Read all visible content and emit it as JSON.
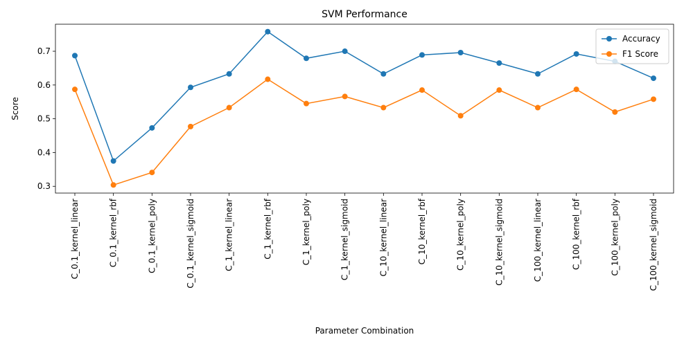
{
  "chart_data": {
    "type": "line",
    "title": "SVM Performance",
    "xlabel": "Parameter Combination",
    "ylabel": "Score",
    "categories": [
      "C_0.1_kernel_linear",
      "C_0.1_kernel_rbf",
      "C_0.1_kernel_poly",
      "C_0.1_kernel_sigmoid",
      "C_1_kernel_linear",
      "C_1_kernel_rbf",
      "C_1_kernel_poly",
      "C_1_kernel_sigmoid",
      "C_10_kernel_linear",
      "C_10_kernel_rbf",
      "C_10_kernel_poly",
      "C_10_kernel_sigmoid",
      "C_100_kernel_linear",
      "C_100_kernel_rbf",
      "C_100_kernel_poly",
      "C_100_kernel_sigmoid"
    ],
    "series": [
      {
        "name": "Accuracy",
        "color": "#1f77b4",
        "values": [
          0.687,
          0.375,
          0.473,
          0.593,
          0.633,
          0.758,
          0.679,
          0.7,
          0.633,
          0.689,
          0.696,
          0.665,
          0.633,
          0.692,
          0.67,
          0.62
        ]
      },
      {
        "name": "F1 Score",
        "color": "#ff7f0e",
        "values": [
          0.587,
          0.304,
          0.341,
          0.477,
          0.533,
          0.617,
          0.545,
          0.566,
          0.533,
          0.585,
          0.509,
          0.585,
          0.533,
          0.587,
          0.52,
          0.558
        ]
      }
    ],
    "ylim": [
      0.28,
      0.78
    ],
    "yticks": [
      0.3,
      0.4,
      0.5,
      0.6,
      0.7
    ],
    "ytick_labels": [
      "0.3",
      "0.4",
      "0.5",
      "0.6",
      "0.7"
    ],
    "grid": false,
    "legend_position": "top-right"
  }
}
